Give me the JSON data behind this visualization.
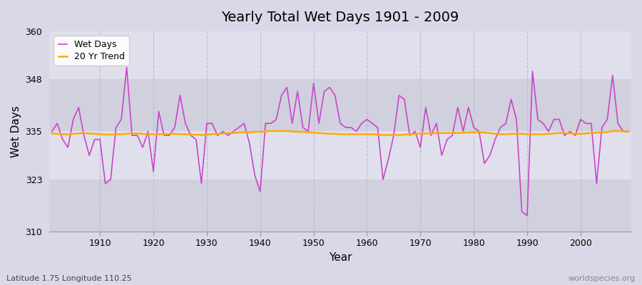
{
  "title": "Yearly Total Wet Days 1901 - 2009",
  "xlabel": "Year",
  "ylabel": "Wet Days",
  "footnote_left": "Latitude 1.75 Longitude 110.25",
  "footnote_right": "worldspecies.org",
  "line_color": "#cc44cc",
  "trend_color": "#ffaa00",
  "bg_outer": "#d8d8e8",
  "bg_inner": "#e0e0ec",
  "ylim": [
    310,
    360
  ],
  "yticks": [
    310,
    323,
    335,
    348,
    360
  ],
  "xticks": [
    1910,
    1920,
    1930,
    1940,
    1950,
    1960,
    1970,
    1980,
    1990,
    2000
  ],
  "years": [
    1901,
    1902,
    1903,
    1904,
    1905,
    1906,
    1907,
    1908,
    1909,
    1910,
    1911,
    1912,
    1913,
    1914,
    1915,
    1916,
    1917,
    1918,
    1919,
    1920,
    1921,
    1922,
    1923,
    1924,
    1925,
    1926,
    1927,
    1928,
    1929,
    1930,
    1931,
    1932,
    1933,
    1934,
    1935,
    1936,
    1937,
    1938,
    1939,
    1940,
    1941,
    1942,
    1943,
    1944,
    1945,
    1946,
    1947,
    1948,
    1949,
    1950,
    1951,
    1952,
    1953,
    1954,
    1955,
    1956,
    1957,
    1958,
    1959,
    1960,
    1961,
    1962,
    1963,
    1964,
    1965,
    1966,
    1967,
    1968,
    1969,
    1970,
    1971,
    1972,
    1973,
    1974,
    1975,
    1976,
    1977,
    1978,
    1979,
    1980,
    1981,
    1982,
    1983,
    1984,
    1985,
    1986,
    1987,
    1988,
    1989,
    1990,
    1991,
    1992,
    1993,
    1994,
    1995,
    1996,
    1997,
    1998,
    1999,
    2000,
    2001,
    2002,
    2003,
    2004,
    2005,
    2006,
    2007,
    2008,
    2009
  ],
  "wet_days": [
    335,
    337,
    333,
    331,
    338,
    341,
    334,
    329,
    333,
    333,
    322,
    323,
    336,
    338,
    351,
    334,
    334,
    331,
    335,
    325,
    340,
    334,
    334,
    336,
    344,
    337,
    334,
    333,
    322,
    337,
    337,
    334,
    335,
    334,
    335,
    336,
    337,
    332,
    324,
    320,
    337,
    337,
    338,
    344,
    346,
    337,
    345,
    336,
    335,
    347,
    337,
    345,
    346,
    344,
    337,
    336,
    336,
    335,
    337,
    338,
    337,
    336,
    323,
    328,
    334,
    344,
    343,
    334,
    335,
    331,
    341,
    334,
    337,
    329,
    333,
    334,
    341,
    335,
    341,
    336,
    335,
    327,
    329,
    333,
    336,
    337,
    343,
    338,
    315,
    314,
    350,
    338,
    337,
    335,
    338,
    338,
    334,
    335,
    334,
    338,
    337,
    337,
    322,
    336,
    338,
    349,
    337,
    335,
    335
  ],
  "trend_vals": [
    334.5,
    334.4,
    334.3,
    334.3,
    334.4,
    334.5,
    334.6,
    334.5,
    334.4,
    334.3,
    334.2,
    334.2,
    334.3,
    334.3,
    334.4,
    334.5,
    334.5,
    334.4,
    334.3,
    334.3,
    334.3,
    334.3,
    334.4,
    334.4,
    334.3,
    334.3,
    334.2,
    334.2,
    334.1,
    334.2,
    334.3,
    334.4,
    334.5,
    334.6,
    334.6,
    334.7,
    334.8,
    334.8,
    334.9,
    334.9,
    335.0,
    335.1,
    335.1,
    335.1,
    335.1,
    335.0,
    334.9,
    334.9,
    334.8,
    334.7,
    334.6,
    334.5,
    334.4,
    334.4,
    334.3,
    334.3,
    334.3,
    334.3,
    334.3,
    334.3,
    334.3,
    334.2,
    334.1,
    334.1,
    334.1,
    334.1,
    334.2,
    334.3,
    334.4,
    334.5,
    334.5,
    334.5,
    334.6,
    334.6,
    334.6,
    334.6,
    334.6,
    334.7,
    334.7,
    334.8,
    334.8,
    334.7,
    334.6,
    334.4,
    334.3,
    334.3,
    334.4,
    334.4,
    334.4,
    334.3,
    334.3,
    334.3,
    334.3,
    334.4,
    334.5,
    334.6,
    334.6,
    334.5,
    334.4,
    334.4,
    334.5,
    334.6,
    334.7,
    334.8,
    334.8,
    335.1,
    335.1,
    335.0,
    334.9
  ]
}
